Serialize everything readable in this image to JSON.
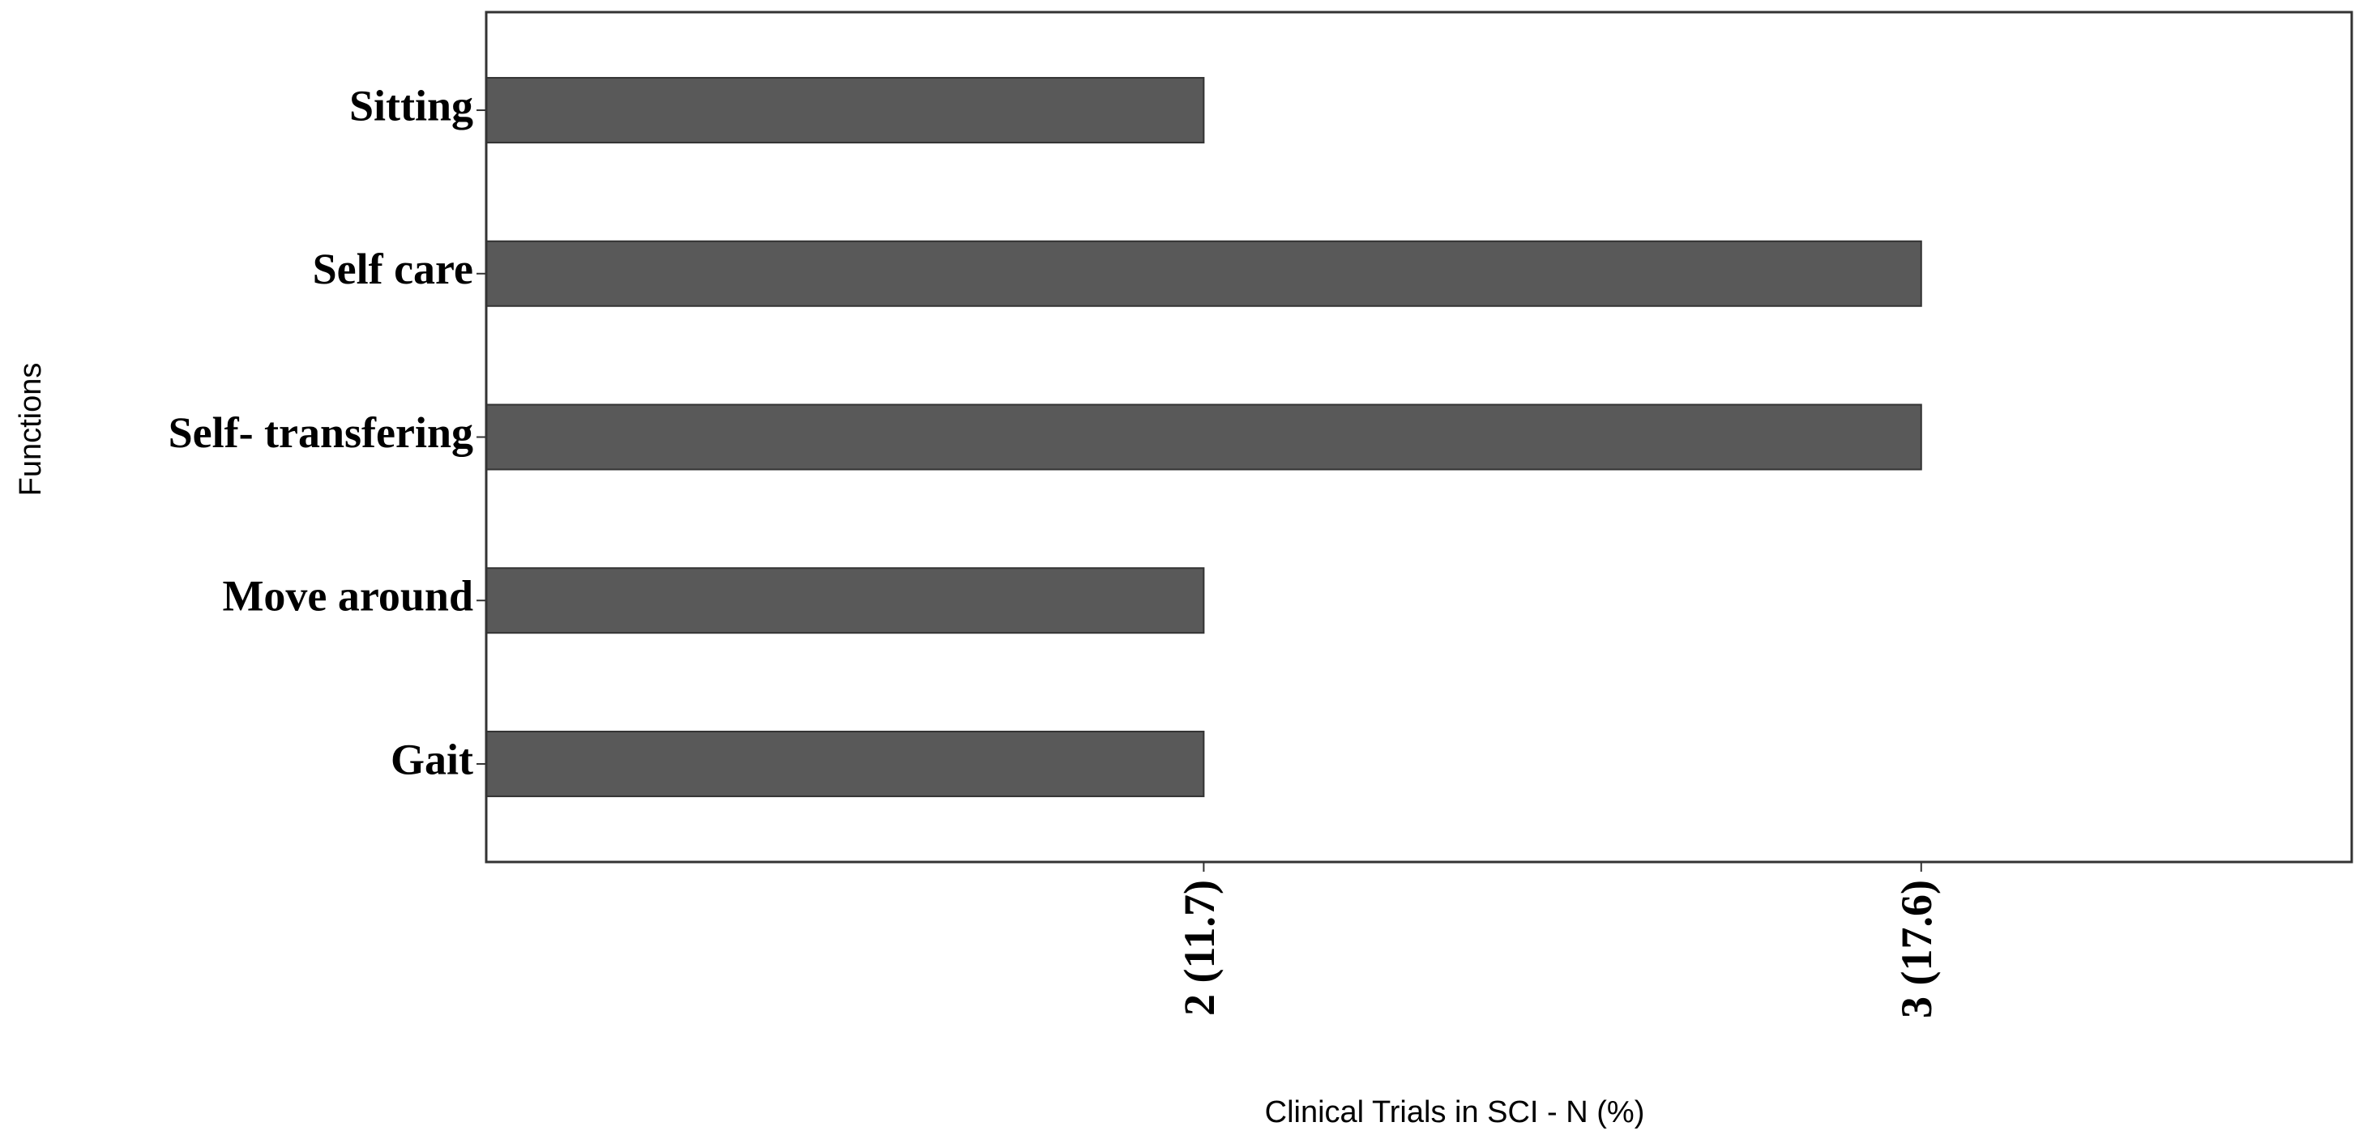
{
  "chart_data": {
    "type": "bar",
    "orientation": "horizontal",
    "categories": [
      "Sitting",
      "Self care",
      "Self- transfering",
      "Move around",
      "Gait"
    ],
    "values": [
      2,
      3,
      3,
      2,
      2
    ],
    "color": "#595959",
    "xlabel": "Clinical Trials in SCI - N (%)",
    "ylabel": "Functions",
    "xlim": [
      1,
      3.6
    ],
    "xticks": [
      {
        "value": 2,
        "label": "2 (11.7)"
      },
      {
        "value": 3,
        "label": "3 (17.6)"
      }
    ],
    "grid": false
  }
}
